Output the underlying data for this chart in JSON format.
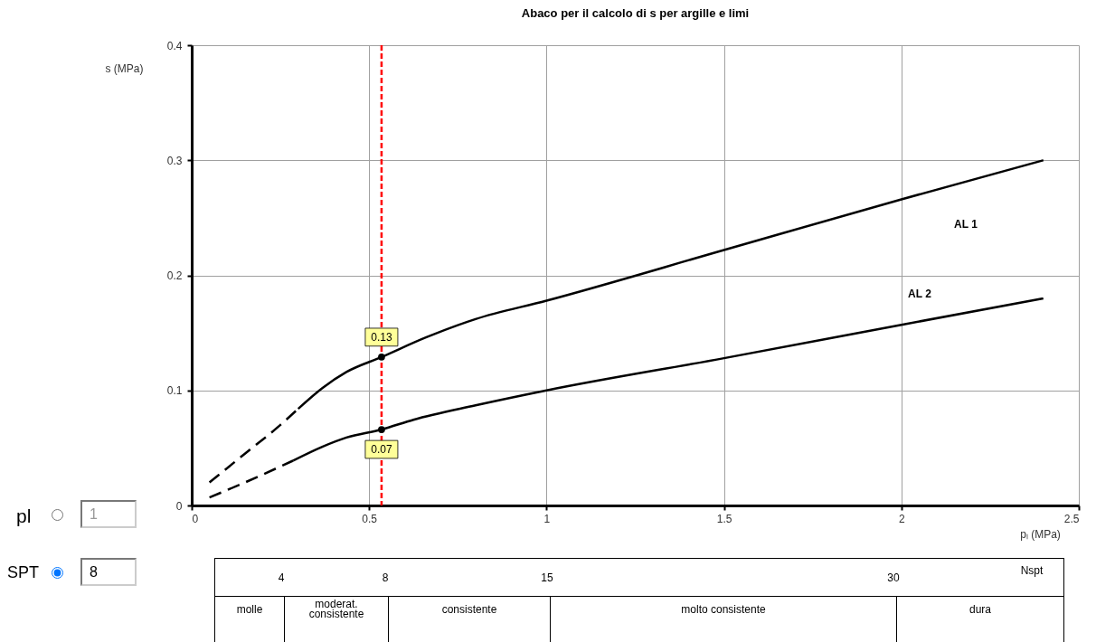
{
  "chart_data": [
    {
      "type": "line",
      "title": "Abaco per il calcolo di s per argille e limi",
      "xlabel": "pₗ (MPa)",
      "ylabel": "s (MPa)",
      "xlim": [
        0,
        2.5
      ],
      "xticks": [
        0,
        0.5,
        1,
        1.5,
        2,
        2.5
      ],
      "ylim": [
        0,
        0.4
      ],
      "yticks": [
        0,
        0.1,
        0.2,
        0.3,
        0.4
      ],
      "grid": true,
      "series": [
        {
          "color": "#000000",
          "line_style": "dashed",
          "x": [
            0.05,
            0.15,
            0.25,
            0.3
          ],
          "values": [
            0.02,
            0.045,
            0.07,
            0.084
          ]
        },
        {
          "color": "#000000",
          "line_style": "solid",
          "x": [
            0.3,
            0.368,
            0.436,
            0.535,
            0.66,
            0.8,
            1.0,
            1.5,
            2.0,
            2.4
          ],
          "values": [
            0.084,
            0.102,
            0.116,
            0.129,
            0.146,
            0.162,
            0.178,
            0.222,
            0.266,
            0.3
          ]
        },
        {
          "color": "#000000",
          "line_style": "dashed",
          "x": [
            0.05,
            0.15,
            0.286
          ],
          "values": [
            0.007,
            0.02,
            0.039
          ]
        },
        {
          "color": "#000000",
          "line_style": "solid",
          "x": [
            0.286,
            0.368,
            0.436,
            0.535,
            0.625,
            0.8,
            1.0,
            1.5,
            2.0,
            2.4
          ],
          "values": [
            0.039,
            0.051,
            0.059,
            0.066,
            0.0745,
            0.087,
            0.1,
            0.128,
            0.157,
            0.18
          ]
        },
        {
          "type": "scatter",
          "color": "#000000",
          "marker": "circle",
          "x": [
            0.535,
            0.535
          ],
          "values": [
            0.129,
            0.066
          ],
          "value_labels": [
            "0.13",
            "0.07"
          ]
        }
      ],
      "ref_lines": [
        {
          "axis": "x",
          "value": 0.535,
          "color": "#ff0000",
          "line_style": "dashed"
        }
      ],
      "annotations": [
        "AL 1",
        "AL 2"
      ]
    },
    {
      "type": "other",
      "annotations": [
        "pl",
        "1",
        "SPT",
        "8"
      ]
    },
    {
      "type": "other",
      "categories": [
        "molle",
        "moderat. consistente",
        "consistente",
        "molto consistente",
        "dura"
      ],
      "annotations": [
        "4",
        "8",
        "15",
        "30",
        "Nspt"
      ]
    }
  ]
}
